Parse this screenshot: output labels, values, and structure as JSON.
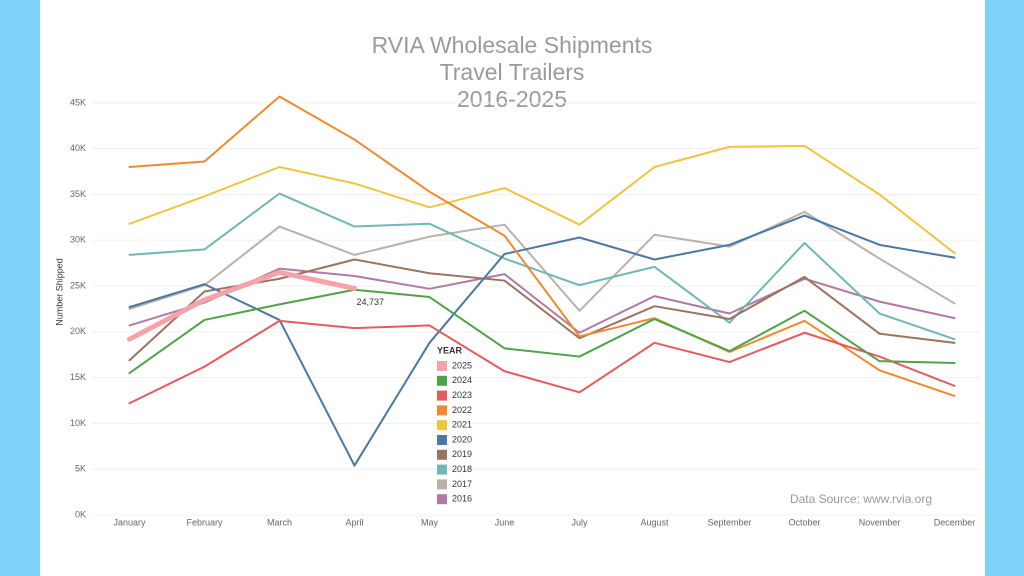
{
  "chart_data": {
    "type": "line",
    "title": [
      "RVIA Wholesale Shipments",
      "Travel Trailers",
      "2016-2025"
    ],
    "y_label": "Number Shipped",
    "annotation": "Data Source: www.rvia.org",
    "legend_title": "YEAR",
    "categories": [
      "January",
      "February",
      "March",
      "April",
      "May",
      "June",
      "July",
      "August",
      "September",
      "October",
      "November",
      "December"
    ],
    "series": [
      {
        "name": "2025",
        "color": "#f7a1ab",
        "values": [
          19200,
          23500,
          26500,
          24737,
          null,
          null,
          null,
          null,
          null,
          null,
          null,
          null
        ],
        "value_labels": [
          null,
          null,
          null,
          "24,737",
          null,
          null,
          null,
          null,
          null,
          null,
          null,
          null
        ]
      },
      {
        "name": "2024",
        "color": "#4ea34a",
        "values": [
          15500,
          21300,
          23000,
          24600,
          23800,
          18200,
          17300,
          21400,
          17900,
          22300,
          16800,
          16600
        ]
      },
      {
        "name": "2023",
        "color": "#e45a5f",
        "values": [
          12200,
          16200,
          21200,
          20400,
          20700,
          15700,
          13400,
          18800,
          16700,
          19900,
          17300,
          14100
        ]
      },
      {
        "name": "2022",
        "color": "#ef8a2c",
        "values": [
          38000,
          38600,
          45700,
          41000,
          35300,
          30500,
          19500,
          21500,
          17800,
          21200,
          15800,
          13000
        ]
      },
      {
        "name": "2021",
        "color": "#f0c53e",
        "values": [
          31800,
          34800,
          38000,
          36200,
          33600,
          35700,
          31700,
          38000,
          40200,
          40300,
          35000,
          28600
        ]
      },
      {
        "name": "2020",
        "color": "#4a78a6",
        "values": [
          22700,
          25200,
          21300,
          5400,
          18800,
          28500,
          30300,
          27900,
          29500,
          32700,
          29500,
          28100
        ]
      },
      {
        "name": "2019",
        "color": "#9c735e",
        "values": [
          16900,
          24400,
          25800,
          27900,
          26400,
          25600,
          19300,
          22800,
          21400,
          26000,
          19800,
          18800
        ]
      },
      {
        "name": "2018",
        "color": "#6fb8b3",
        "values": [
          28400,
          29000,
          35100,
          31500,
          31800,
          28000,
          25100,
          27100,
          21000,
          29700,
          22000,
          19200
        ]
      },
      {
        "name": "2017",
        "color": "#bbb1aa",
        "values": [
          22500,
          25100,
          31500,
          28400,
          30400,
          31700,
          22300,
          30600,
          29300,
          33100,
          28000,
          23100
        ]
      },
      {
        "name": "2016",
        "color": "#b379a5",
        "values": [
          20700,
          23200,
          26900,
          26100,
          24700,
          26300,
          19900,
          23900,
          22000,
          25800,
          23300,
          21500
        ]
      }
    ],
    "ylim": [
      0,
      47500
    ],
    "yticks": [
      {
        "value": 0,
        "label": "0K"
      },
      {
        "value": 5000,
        "label": "5K"
      },
      {
        "value": 10000,
        "label": "10K"
      },
      {
        "value": 15000,
        "label": "15K"
      },
      {
        "value": 20000,
        "label": "20K"
      },
      {
        "value": 25000,
        "label": "25K"
      },
      {
        "value": 30000,
        "label": "30K"
      },
      {
        "value": 35000,
        "label": "35K"
      },
      {
        "value": 40000,
        "label": "40K"
      },
      {
        "value": 45000,
        "label": "45K"
      }
    ],
    "grid": true
  }
}
